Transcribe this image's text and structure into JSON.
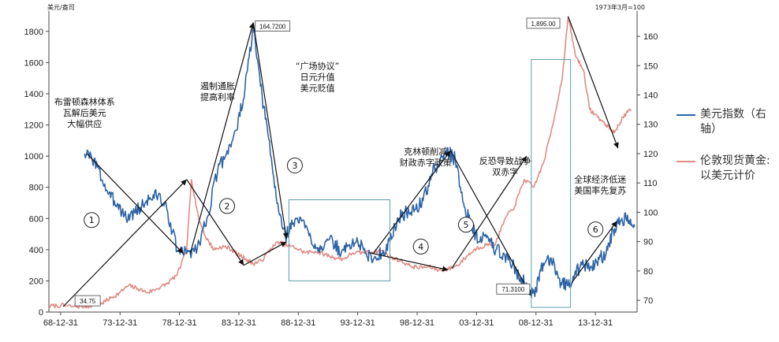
{
  "chart_data": {
    "type": "line",
    "title": "",
    "left_axis": {
      "unit": "美元/盎司",
      "range": [
        0,
        1900
      ],
      "ticks": [
        0,
        200,
        400,
        600,
        800,
        1000,
        1200,
        1400,
        1600,
        1800
      ]
    },
    "right_axis": {
      "unit": "1973年3月=100",
      "range": [
        66,
        167
      ],
      "ticks": [
        70,
        80,
        90,
        100,
        110,
        120,
        130,
        140,
        150,
        160
      ]
    },
    "x_axis": {
      "range": [
        1968.0,
        2017.5
      ],
      "tick_labels": [
        "68-12-31",
        "73-12-31",
        "78-12-31",
        "83-12-31",
        "88-12-31",
        "93-12-31",
        "98-12-31",
        "03-12-31",
        "08-12-31",
        "13-12-31"
      ],
      "tick_positions": [
        1968.99,
        1973.99,
        1978.99,
        1983.99,
        1988.99,
        1993.99,
        1998.99,
        2003.99,
        2008.99,
        2013.99
      ]
    },
    "grid": false,
    "legend_position": "right",
    "series": [
      {
        "name": "美元指数（右轴）",
        "axis": "right",
        "color": "#2e64a6",
        "x": [
          1971.0,
          1971.8,
          1972.5,
          1973.2,
          1973.8,
          1974.5,
          1975.2,
          1975.8,
          1976.5,
          1977.2,
          1978.0,
          1978.8,
          1979.6,
          1980.5,
          1981.3,
          1982.2,
          1983.0,
          1983.8,
          1984.5,
          1985.2,
          1985.8,
          1986.5,
          1987.2,
          1987.9,
          1988.5,
          1989.2,
          1989.9,
          1990.6,
          1991.2,
          1991.9,
          1992.6,
          1993.3,
          1994.0,
          1994.7,
          1995.3,
          1996.0,
          1996.7,
          1997.4,
          1998.1,
          1998.8,
          1999.5,
          2000.2,
          2000.9,
          2001.5,
          2002.2,
          2002.9,
          2003.5,
          2004.2,
          2004.9,
          2005.6,
          2006.3,
          2007.0,
          2007.7,
          2008.3,
          2008.9,
          2009.4,
          2009.9,
          2010.5,
          2011.1,
          2011.7,
          2012.3,
          2013.0,
          2013.7,
          2014.3,
          2014.9,
          2015.5,
          2016.1,
          2016.7,
          2017.3
        ],
        "values": [
          120,
          118,
          111,
          105,
          103,
          98,
          100,
          102,
          105,
          106,
          100,
          87,
          86,
          88,
          98,
          114,
          121,
          128,
          142,
          163,
          143,
          125,
          103,
          92,
          96,
          98,
          92,
          88,
          89,
          90,
          86,
          89,
          90,
          86,
          84,
          86,
          90,
          98,
          100,
          101,
          104,
          113,
          117,
          121,
          118,
          103,
          96,
          90,
          92,
          87,
          86,
          82,
          78,
          74,
          71.31,
          80,
          84,
          83,
          76,
          75,
          80,
          82,
          81,
          84,
          86,
          94,
          97,
          99,
          95
        ]
      },
      {
        "name": "伦敦现货黄金:以美元计价",
        "axis": "left",
        "color": "#e08c84",
        "x": [
          1968.0,
          1969.0,
          1970.0,
          1971.0,
          1971.6,
          1972.5,
          1973.2,
          1973.9,
          1974.7,
          1975.5,
          1976.3,
          1977.1,
          1977.9,
          1978.8,
          1979.6,
          1980.0,
          1980.6,
          1981.2,
          1981.9,
          1982.6,
          1983.2,
          1983.9,
          1984.6,
          1985.2,
          1985.9,
          1986.6,
          1987.3,
          1988.0,
          1988.8,
          1989.6,
          1990.4,
          1991.2,
          1992.0,
          1992.8,
          1993.6,
          1994.4,
          1995.2,
          1996.0,
          1996.8,
          1997.6,
          1998.4,
          1999.2,
          2000.0,
          2000.8,
          2001.6,
          2002.4,
          2003.2,
          2004.0,
          2004.8,
          2005.6,
          2006.4,
          2007.2,
          2008.0,
          2008.8,
          2009.6,
          2010.4,
          2011.2,
          2011.7,
          2012.3,
          2013.0,
          2013.5,
          2014.2,
          2014.9,
          2015.6,
          2016.3,
          2017.0
        ],
        "values": [
          38,
          42,
          36,
          34.75,
          42,
          58,
          90,
          120,
          170,
          150,
          125,
          150,
          180,
          240,
          400,
          850,
          600,
          480,
          400,
          420,
          410,
          370,
          340,
          310,
          330,
          400,
          450,
          430,
          410,
          380,
          390,
          370,
          350,
          340,
          380,
          380,
          385,
          395,
          350,
          330,
          295,
          285,
          290,
          270,
          275,
          300,
          360,
          410,
          430,
          440,
          600,
          680,
          850,
          800,
          950,
          1200,
          1500,
          1895,
          1650,
          1550,
          1300,
          1250,
          1200,
          1150,
          1250,
          1300
        ]
      }
    ],
    "annotations": [
      {
        "id": "1",
        "text": "布雷顿森林体系\n瓦解后美元\n大幅供应"
      },
      {
        "id": "2",
        "text": "遏制通胀\n提高利率"
      },
      {
        "id": "3",
        "text": "“广场协议”\n日元升值\n美元贬值"
      },
      {
        "id": "4",
        "text": "克林顿削减\n财政赤字政策"
      },
      {
        "id": "5",
        "text": "反恐导致战争\n双赤字"
      },
      {
        "id": "6",
        "text": "全球经济低迷\n美国率先复苏"
      }
    ],
    "value_callouts": [
      "34.75",
      "164.7200",
      "1,895.00",
      "71.3100"
    ]
  }
}
